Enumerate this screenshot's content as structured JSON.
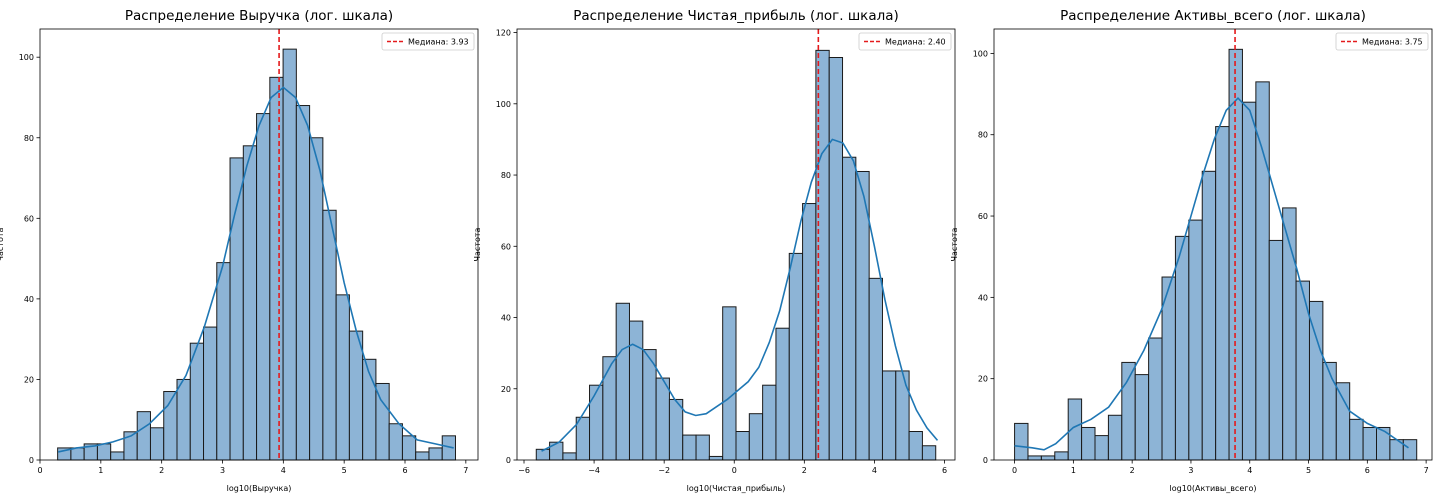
{
  "figure": {
    "background": "#ffffff"
  },
  "chart_data": [
    {
      "type": "histogram",
      "title": "Распределение Выручка (лог. шкала)",
      "xlabel": "log10(Выручка)",
      "ylabel": "Частота",
      "xlim": [
        0,
        7.2
      ],
      "ylim": [
        0,
        107
      ],
      "xticks": [
        0,
        1,
        2,
        3,
        4,
        5,
        6,
        7
      ],
      "xtick_labels": [
        "0",
        "1",
        "2",
        "3",
        "4",
        "5",
        "6",
        "7"
      ],
      "yticks": [
        0,
        20,
        40,
        60,
        80,
        100
      ],
      "ytick_labels": [
        "0",
        "20",
        "40",
        "60",
        "80",
        "100"
      ],
      "bin_start": 0.29,
      "bin_width": 0.218,
      "counts": [
        3,
        3,
        4,
        4,
        2,
        7,
        12,
        8,
        17,
        20,
        29,
        33,
        49,
        75,
        78,
        86,
        95,
        102,
        88,
        80,
        62,
        41,
        32,
        25,
        19,
        9,
        6,
        2,
        3,
        6
      ],
      "kde": {
        "x": [
          0.3,
          0.6,
          0.9,
          1.2,
          1.5,
          1.8,
          2.1,
          2.4,
          2.7,
          3.0,
          3.2,
          3.4,
          3.6,
          3.8,
          4.0,
          4.2,
          4.4,
          4.6,
          4.8,
          5.0,
          5.2,
          5.4,
          5.6,
          5.9,
          6.2,
          6.5,
          6.8
        ],
        "y": [
          2,
          3,
          3.5,
          4.5,
          6,
          9,
          13.5,
          21,
          33,
          48,
          61,
          73,
          83,
          90,
          92.5,
          90,
          83,
          72,
          58,
          44,
          32,
          22,
          15,
          9,
          5,
          4,
          3
        ]
      },
      "median": {
        "value": 3.93,
        "label": "Медиана: 3.93"
      },
      "legend_position": "top-right",
      "colors": {
        "bar": "#8db4d6",
        "edge": "#1a1a1a",
        "kde": "#1f77b4",
        "median": "#e41a1c"
      }
    },
    {
      "type": "histogram",
      "title": "Распределение Чистая_прибыль (лог. шкала)",
      "xlabel": "log10(Чистая_прибыль)",
      "ylabel": "Частота",
      "xlim": [
        -6.2,
        6.3
      ],
      "ylim": [
        0,
        121
      ],
      "xticks": [
        -6,
        -4,
        -2,
        0,
        2,
        4,
        6
      ],
      "xtick_labels": [
        "−6",
        "−4",
        "−2",
        "0",
        "2",
        "4",
        "6"
      ],
      "yticks": [
        0,
        20,
        40,
        60,
        80,
        100,
        120
      ],
      "ytick_labels": [
        "0",
        "20",
        "40",
        "60",
        "80",
        "100",
        "120"
      ],
      "bin_start": -5.65,
      "bin_width": 0.38,
      "counts": [
        3,
        5,
        2,
        12,
        21,
        29,
        44,
        39,
        31,
        23,
        17,
        7,
        7,
        1,
        43,
        8,
        13,
        21,
        37,
        58,
        72,
        115,
        113,
        85,
        81,
        51,
        25,
        25,
        8,
        4
      ],
      "kde": {
        "x": [
          -5.5,
          -5.0,
          -4.5,
          -4.0,
          -3.5,
          -3.2,
          -2.9,
          -2.6,
          -2.3,
          -2.0,
          -1.7,
          -1.4,
          -1.1,
          -0.8,
          -0.5,
          -0.2,
          0.1,
          0.4,
          0.7,
          1.0,
          1.3,
          1.6,
          1.9,
          2.2,
          2.5,
          2.8,
          3.1,
          3.4,
          3.7,
          4.0,
          4.3,
          4.6,
          4.9,
          5.2,
          5.5,
          5.8
        ],
        "y": [
          2.5,
          5,
          10,
          18,
          27,
          31,
          32.5,
          31,
          27,
          22,
          17,
          13.5,
          12.5,
          13,
          15,
          17,
          19.5,
          22,
          26,
          33,
          42,
          54,
          67,
          78,
          86,
          90,
          89,
          84,
          74,
          60,
          45,
          32,
          21,
          14,
          9,
          5.5
        ]
      },
      "median": {
        "value": 2.4,
        "label": "Медиана: 2.40"
      },
      "legend_position": "top-right",
      "colors": {
        "bar": "#8db4d6",
        "edge": "#1a1a1a",
        "kde": "#1f77b4",
        "median": "#e41a1c"
      }
    },
    {
      "type": "histogram",
      "title": "Распределение Активы_всего (лог. шкала)",
      "xlabel": "log10(Активы_всего)",
      "ylabel": "Частота",
      "xlim": [
        -0.35,
        7.1
      ],
      "ylim": [
        0,
        106
      ],
      "xticks": [
        0,
        1,
        2,
        3,
        4,
        5,
        6,
        7
      ],
      "xtick_labels": [
        "0",
        "1",
        "2",
        "3",
        "4",
        "5",
        "6",
        "7"
      ],
      "yticks": [
        0,
        20,
        40,
        60,
        80,
        100
      ],
      "yticks_labels_note": "",
      "ytick_labels": [
        "0",
        "20",
        "40",
        "60",
        "80",
        "100"
      ],
      "bin_start": 0.0,
      "bin_width": 0.228,
      "counts": [
        9,
        1,
        1,
        2,
        15,
        8,
        6,
        11,
        24,
        21,
        30,
        45,
        55,
        59,
        71,
        82,
        101,
        88,
        93,
        54,
        62,
        44,
        39,
        24,
        19,
        10,
        8,
        8,
        5,
        5
      ],
      "kde": {
        "x": [
          0.0,
          0.3,
          0.5,
          0.7,
          1.0,
          1.3,
          1.6,
          1.9,
          2.2,
          2.5,
          2.8,
          3.0,
          3.2,
          3.4,
          3.6,
          3.8,
          4.0,
          4.2,
          4.4,
          4.6,
          4.8,
          5.0,
          5.2,
          5.4,
          5.7,
          6.0,
          6.3,
          6.7
        ],
        "y": [
          3.5,
          3,
          2.5,
          4,
          8,
          10,
          13,
          19,
          27,
          37,
          50,
          60,
          70,
          79,
          86,
          89,
          86,
          77,
          67,
          57,
          47,
          36,
          27,
          20,
          12,
          9,
          7,
          3
        ]
      },
      "median": {
        "value": 3.75,
        "label": "Медиана: 3.75"
      },
      "legend_position": "top-right",
      "colors": {
        "bar": "#8db4d6",
        "edge": "#1a1a1a",
        "kde": "#1f77b4",
        "median": "#e41a1c"
      }
    }
  ]
}
